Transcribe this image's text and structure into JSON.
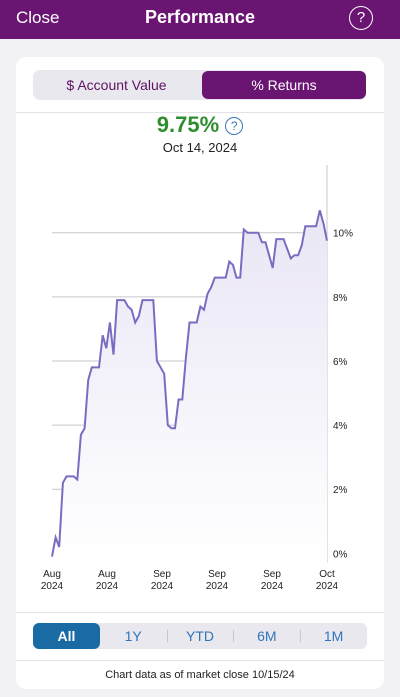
{
  "header": {
    "close_label": "Close",
    "title": "Performance",
    "help_label": "?"
  },
  "toggle": {
    "account_value_label": "$ Account Value",
    "returns_label": "% Returns",
    "selected": "% Returns"
  },
  "summary": {
    "value": "9.75%",
    "date": "Oct 14, 2024",
    "info_label": "?"
  },
  "colors": {
    "brand": "#6b1573",
    "positive": "#2e8f2e",
    "line": "#7a6cc0",
    "fill": "#e9e6f5",
    "range_selected": "#1a6aa4"
  },
  "chart_data": {
    "type": "area",
    "title": "",
    "xlabel": "",
    "ylabel": "",
    "ylim": [
      -0.3,
      11.8
    ],
    "yticks": [
      0,
      2,
      4,
      6,
      8,
      10
    ],
    "ytick_labels": [
      "0%",
      "2%",
      "4%",
      "6%",
      "8%",
      "10%"
    ],
    "xtick_labels": [
      "Aug\n2024",
      "Aug\n2024",
      "Sep\n2024",
      "Sep\n2024",
      "Sep\n2024",
      "Oct\n2024"
    ],
    "grid": true,
    "x": [
      0,
      1,
      2,
      3,
      4,
      5,
      6,
      7,
      8,
      9,
      10,
      11,
      12,
      13,
      14,
      15,
      16,
      17,
      18,
      19,
      20,
      21,
      22,
      23,
      24,
      25,
      26,
      27,
      28,
      29,
      30,
      31,
      32,
      33,
      34,
      35,
      36,
      37,
      38,
      39,
      40,
      41,
      42,
      43,
      44,
      45,
      46,
      47,
      48,
      49,
      50,
      51,
      52,
      53,
      54,
      55,
      56,
      57,
      58,
      59,
      60,
      61,
      62,
      63,
      64,
      65,
      66,
      67,
      68,
      69,
      70,
      71,
      72,
      73,
      74,
      75,
      76
    ],
    "y": [
      -0.1,
      0.5,
      0.2,
      2.2,
      2.4,
      2.4,
      2.4,
      2.3,
      3.7,
      3.9,
      5.4,
      5.8,
      5.8,
      5.8,
      6.8,
      6.4,
      7.2,
      6.2,
      7.9,
      7.9,
      7.9,
      7.7,
      7.6,
      7.2,
      7.4,
      7.9,
      7.9,
      7.9,
      7.9,
      6.0,
      5.8,
      5.6,
      4.0,
      3.9,
      3.9,
      4.8,
      4.8,
      6.1,
      7.2,
      7.2,
      7.2,
      7.7,
      7.6,
      8.1,
      8.3,
      8.6,
      8.6,
      8.6,
      8.6,
      9.1,
      9.0,
      8.6,
      8.6,
      10.1,
      10.0,
      10.0,
      10.0,
      10.0,
      9.7,
      9.7,
      9.3,
      8.9,
      9.8,
      9.8,
      9.8,
      9.5,
      9.2,
      9.3,
      9.3,
      9.6,
      10.2,
      10.2,
      10.2,
      10.2,
      10.7,
      10.3,
      9.75
    ]
  },
  "ranges": {
    "items": [
      "All",
      "1Y",
      "YTD",
      "6M",
      "1M"
    ],
    "selected": "All"
  },
  "footer": {
    "note": "Chart data as of market close 10/15/24"
  }
}
